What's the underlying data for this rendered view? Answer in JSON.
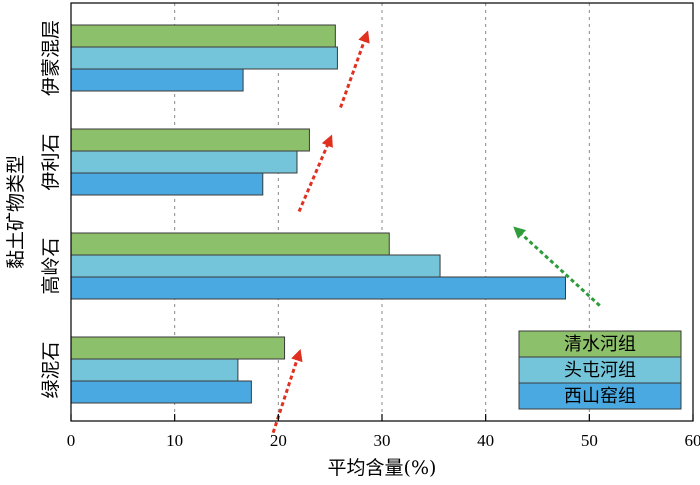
{
  "chart_data": {
    "type": "bar",
    "orientation": "horizontal",
    "categories": [
      "伊蒙混层",
      "伊利石",
      "高岭石",
      "绿泥石"
    ],
    "series": [
      {
        "name": "清水河组",
        "color": "#8dc06a",
        "values": [
          25.5,
          23.0,
          30.7,
          20.6
        ]
      },
      {
        "name": "头屯河组",
        "color": "#74c5da",
        "values": [
          25.7,
          21.8,
          35.6,
          16.1
        ]
      },
      {
        "name": "西山窑组",
        "color": "#4aa9e0",
        "values": [
          16.6,
          18.5,
          47.7,
          17.4
        ]
      }
    ],
    "xlabel": "平均含量(%)",
    "ylabel": "黏土矿物类型",
    "xlim": [
      0,
      60
    ],
    "xticks": [
      "0",
      "10",
      "20",
      "30",
      "40",
      "50",
      "60"
    ],
    "grid": "vertical dashed",
    "legend_position": "bottom-right",
    "annotations": [
      {
        "category": "伊蒙混层",
        "type": "arrow",
        "color": "#e03020",
        "from": [
          26,
          -0.75
        ],
        "to": [
          28.5,
          0.35
        ]
      },
      {
        "category": "伊利石",
        "type": "arrow",
        "color": "#e03020",
        "from": [
          22,
          -0.75
        ],
        "to": [
          25,
          0.35
        ]
      },
      {
        "category": "高岭石",
        "type": "arrow",
        "color": "#2e9c3a",
        "from": [
          51,
          -0.6
        ],
        "to": [
          43,
          0.55
        ]
      },
      {
        "category": "绿泥石",
        "type": "arrow",
        "color": "#e03020",
        "from": [
          19.5,
          -0.95
        ],
        "to": [
          22,
          0.25
        ]
      }
    ]
  }
}
